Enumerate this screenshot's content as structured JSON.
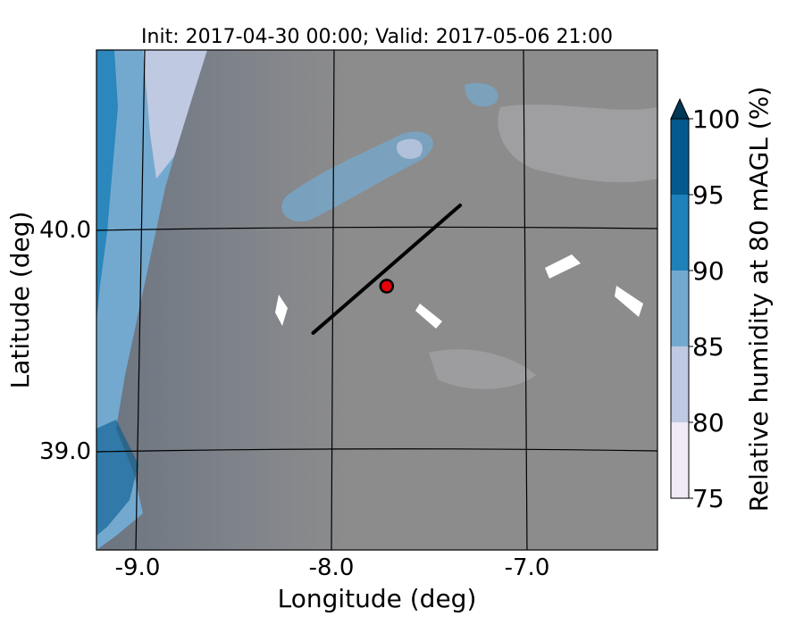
{
  "chart_data": {
    "type": "heatmap",
    "title": "Init: 2017-04-30 00:00; Valid: 2017-05-06 21:00",
    "xlabel": "Longitude (deg)",
    "ylabel": "Latitude (deg)",
    "x_ticks": [
      {
        "value": -9.0,
        "label": "-9.0"
      },
      {
        "value": -8.0,
        "label": "-8.0"
      },
      {
        "value": -7.0,
        "label": "-7.0"
      }
    ],
    "y_ticks": [
      {
        "value": 40.0,
        "label": "40.0"
      },
      {
        "value": 39.0,
        "label": "39.0"
      }
    ],
    "xlim": [
      -9.25,
      -6.35
    ],
    "ylim": [
      38.45,
      40.8
    ],
    "grid": true,
    "colorbar": {
      "label": "Relative humidity at 80 mAGL (%)",
      "levels": [
        75,
        80,
        85,
        90,
        95,
        100
      ],
      "tick_labels": [
        "75",
        "80",
        "85",
        "90",
        "95",
        "100"
      ],
      "colors": [
        "#efeaf3",
        "#bfc9e2",
        "#74a9cf",
        "#1e81b9",
        "#045a8d",
        "#023858"
      ],
      "extend": "max"
    },
    "transect": {
      "start": [
        -8.13,
        39.47
      ],
      "end": [
        -7.37,
        40.07
      ],
      "color": "#000000"
    },
    "site_marker": {
      "lon": -7.75,
      "lat": 39.69,
      "color": "#e8000b"
    },
    "colors": {
      "terrain_mask": "#8c8c8c",
      "terrain_mask_light": "#a4a4a8",
      "ocean_band": "#6b7480"
    }
  }
}
